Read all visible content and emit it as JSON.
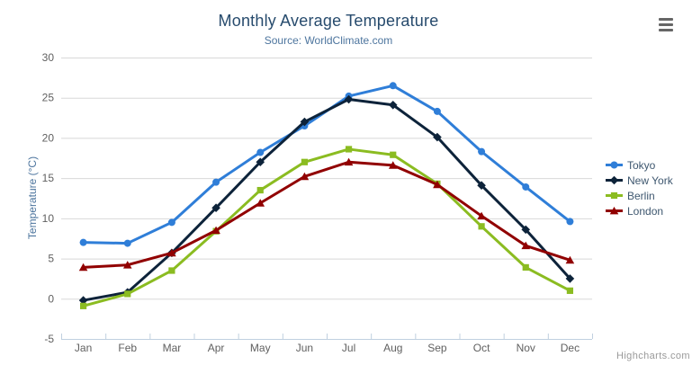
{
  "credits": "Highcharts.com",
  "export_menu": {
    "icon": "hamburger-icon"
  },
  "chart_data": {
    "type": "line",
    "title": "Monthly Average Temperature",
    "subtitle": "Source: WorldClimate.com",
    "xlabel": "",
    "ylabel": "Temperature (°C)",
    "categories": [
      "Jan",
      "Feb",
      "Mar",
      "Apr",
      "May",
      "Jun",
      "Jul",
      "Aug",
      "Sep",
      "Oct",
      "Nov",
      "Dec"
    ],
    "yticks": [
      -5,
      0,
      5,
      10,
      15,
      20,
      25,
      30
    ],
    "ylim": [
      -5,
      30
    ],
    "grid": true,
    "legend_position": "right",
    "series": [
      {
        "name": "Tokyo",
        "color": "#2f7ed8",
        "marker": "circle",
        "values": [
          7.0,
          6.9,
          9.5,
          14.5,
          18.2,
          21.5,
          25.2,
          26.5,
          23.3,
          18.3,
          13.9,
          9.6
        ]
      },
      {
        "name": "New York",
        "color": "#0d233a",
        "marker": "diamond",
        "values": [
          -0.2,
          0.8,
          5.7,
          11.3,
          17.0,
          22.0,
          24.8,
          24.1,
          20.1,
          14.1,
          8.6,
          2.5
        ]
      },
      {
        "name": "Berlin",
        "color": "#8bbc21",
        "marker": "square",
        "values": [
          -0.9,
          0.6,
          3.5,
          8.4,
          13.5,
          17.0,
          18.6,
          17.9,
          14.3,
          9.0,
          3.9,
          1.0
        ]
      },
      {
        "name": "London",
        "color": "#910000",
        "marker": "triangle",
        "values": [
          3.9,
          4.2,
          5.7,
          8.5,
          11.9,
          15.2,
          17.0,
          16.6,
          14.2,
          10.3,
          6.6,
          4.8
        ]
      }
    ],
    "axis_colors": {
      "grid_line": "#d8d8d8",
      "axis_line": "#c0d0e0",
      "tick": "#c0d0e0"
    }
  }
}
